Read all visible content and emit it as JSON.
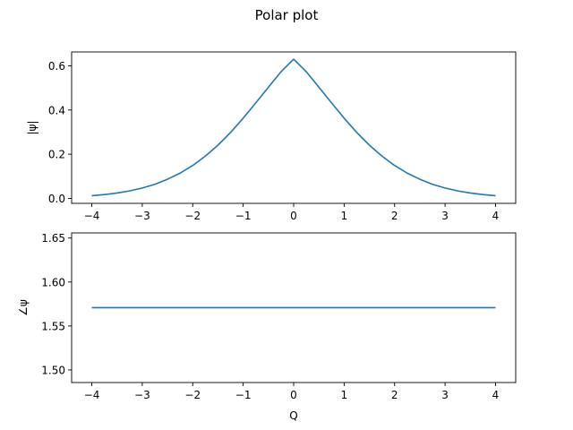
{
  "chart_data": {
    "title": "Polar plot",
    "colors": {
      "series": "#1f77b4",
      "axes": "#000000",
      "background": "#ffffff"
    },
    "grid": false,
    "legend": "none",
    "subplots": [
      {
        "type": "line",
        "xlabel": "",
        "ylabel": "|ψ|",
        "xlim": [
          -4.4,
          4.4
        ],
        "ylim": [
          -0.0225,
          0.6626
        ],
        "xticks": [
          -4,
          -3,
          -2,
          -1,
          0,
          1,
          2,
          3,
          4
        ],
        "xtick_labels": [
          "−4",
          "−3",
          "−2",
          "−1",
          "0",
          "1",
          "2",
          "3",
          "4"
        ],
        "yticks": [
          0.0,
          0.2,
          0.4,
          0.6
        ],
        "ytick_labels": [
          "0.0",
          "0.2",
          "0.4",
          "0.6"
        ],
        "series": [
          {
            "x": [
              -4.0,
              -3.75,
              -3.5,
              -3.25,
              -3.0,
              -2.75,
              -2.5,
              -2.25,
              -2.0,
              -1.75,
              -1.5,
              -1.25,
              -1.0,
              -0.75,
              -0.5,
              -0.25,
              0.0,
              0.25,
              0.5,
              0.75,
              1.0,
              1.25,
              1.5,
              1.75,
              2.0,
              2.25,
              2.5,
              2.75,
              3.0,
              3.25,
              3.5,
              3.75,
              4.0
            ],
            "y": [
              0.0122,
              0.0173,
              0.0243,
              0.0338,
              0.0469,
              0.0638,
              0.0866,
              0.1143,
              0.1489,
              0.1912,
              0.241,
              0.2985,
              0.363,
              0.4325,
              0.5031,
              0.5732,
              0.63,
              0.5732,
              0.5031,
              0.4325,
              0.363,
              0.2985,
              0.241,
              0.1912,
              0.1489,
              0.1143,
              0.0866,
              0.0638,
              0.0469,
              0.0338,
              0.0243,
              0.0173,
              0.0122
            ]
          }
        ]
      },
      {
        "type": "line",
        "xlabel": "Q",
        "ylabel": "∠ψ",
        "xlim": [
          -4.4,
          4.4
        ],
        "ylim": [
          1.4857,
          1.6558
        ],
        "xticks": [
          -4,
          -3,
          -2,
          -1,
          0,
          1,
          2,
          3,
          4
        ],
        "xtick_labels": [
          "−4",
          "−3",
          "−2",
          "−1",
          "0",
          "1",
          "2",
          "3",
          "4"
        ],
        "yticks": [
          1.5,
          1.55,
          1.6,
          1.65
        ],
        "ytick_labels": [
          "1.50",
          "1.55",
          "1.60",
          "1.65"
        ],
        "series": [
          {
            "x": [
              -4.0,
              -3.0,
              -2.0,
              -1.0,
              0.0,
              1.0,
              2.0,
              3.0,
              4.0
            ],
            "y": [
              1.5708,
              1.5708,
              1.5708,
              1.5708,
              1.5708,
              1.5708,
              1.5708,
              1.5708,
              1.5708
            ]
          }
        ]
      }
    ]
  }
}
